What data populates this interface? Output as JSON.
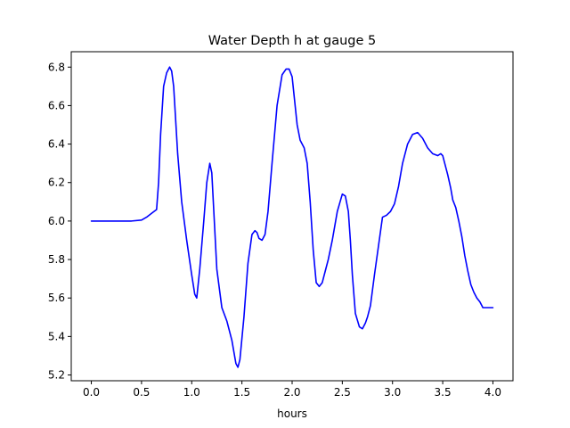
{
  "chart_data": {
    "type": "line",
    "title": "Water Depth h at gauge 5",
    "xlabel": "hours",
    "ylabel": "",
    "xlim": [
      -0.2,
      4.2
    ],
    "ylim": [
      5.17,
      6.88
    ],
    "xticks": [
      0.0,
      0.5,
      1.0,
      1.5,
      2.0,
      2.5,
      3.0,
      3.5,
      4.0
    ],
    "xtick_labels": [
      "0.0",
      "0.5",
      "1.0",
      "1.5",
      "2.0",
      "2.5",
      "3.0",
      "3.5",
      "4.0"
    ],
    "yticks": [
      5.2,
      5.4,
      5.6,
      5.8,
      6.0,
      6.2,
      6.4,
      6.6,
      6.8
    ],
    "ytick_labels": [
      "5.2",
      "5.4",
      "5.6",
      "5.8",
      "6.0",
      "6.2",
      "6.4",
      "6.6",
      "6.8"
    ],
    "grid": false,
    "legend": "none",
    "series": [
      {
        "color": "#0000ff",
        "x": [
          0.0,
          0.1,
          0.2,
          0.3,
          0.4,
          0.5,
          0.55,
          0.6,
          0.65,
          0.67,
          0.69,
          0.72,
          0.75,
          0.78,
          0.8,
          0.82,
          0.86,
          0.9,
          0.95,
          1.0,
          1.03,
          1.05,
          1.08,
          1.12,
          1.15,
          1.18,
          1.2,
          1.22,
          1.25,
          1.3,
          1.35,
          1.4,
          1.44,
          1.46,
          1.48,
          1.52,
          1.56,
          1.6,
          1.63,
          1.65,
          1.67,
          1.7,
          1.73,
          1.76,
          1.8,
          1.85,
          1.9,
          1.94,
          1.97,
          2.0,
          2.02,
          2.05,
          2.08,
          2.12,
          2.15,
          2.18,
          2.21,
          2.24,
          2.27,
          2.3,
          2.33,
          2.36,
          2.4,
          2.45,
          2.5,
          2.53,
          2.56,
          2.58,
          2.6,
          2.63,
          2.67,
          2.7,
          2.73,
          2.75,
          2.78,
          2.82,
          2.86,
          2.9,
          2.94,
          2.98,
          3.02,
          3.06,
          3.1,
          3.15,
          3.2,
          3.25,
          3.3,
          3.35,
          3.4,
          3.45,
          3.48,
          3.5,
          3.52,
          3.55,
          3.58,
          3.6,
          3.63,
          3.66,
          3.69,
          3.72,
          3.75,
          3.78,
          3.81,
          3.84,
          3.87,
          3.9,
          3.93,
          3.96,
          4.0
        ],
        "y": [
          6.0,
          6.0,
          6.0,
          6.0,
          6.0,
          6.005,
          6.02,
          6.04,
          6.06,
          6.2,
          6.45,
          6.7,
          6.77,
          6.8,
          6.78,
          6.7,
          6.35,
          6.1,
          5.9,
          5.72,
          5.62,
          5.6,
          5.75,
          6.0,
          6.2,
          6.3,
          6.25,
          6.05,
          5.75,
          5.55,
          5.48,
          5.38,
          5.26,
          5.24,
          5.28,
          5.5,
          5.78,
          5.93,
          5.95,
          5.94,
          5.91,
          5.9,
          5.93,
          6.05,
          6.3,
          6.6,
          6.76,
          6.79,
          6.79,
          6.75,
          6.65,
          6.5,
          6.42,
          6.38,
          6.3,
          6.1,
          5.85,
          5.68,
          5.66,
          5.68,
          5.74,
          5.8,
          5.9,
          6.05,
          6.14,
          6.13,
          6.05,
          5.9,
          5.72,
          5.52,
          5.45,
          5.44,
          5.47,
          5.5,
          5.56,
          5.72,
          5.87,
          6.02,
          6.03,
          6.05,
          6.09,
          6.18,
          6.3,
          6.4,
          6.45,
          6.46,
          6.43,
          6.38,
          6.35,
          6.34,
          6.35,
          6.34,
          6.3,
          6.24,
          6.17,
          6.11,
          6.07,
          6.0,
          5.92,
          5.82,
          5.74,
          5.67,
          5.63,
          5.6,
          5.58,
          5.55,
          5.55,
          5.55,
          5.55
        ]
      }
    ]
  }
}
